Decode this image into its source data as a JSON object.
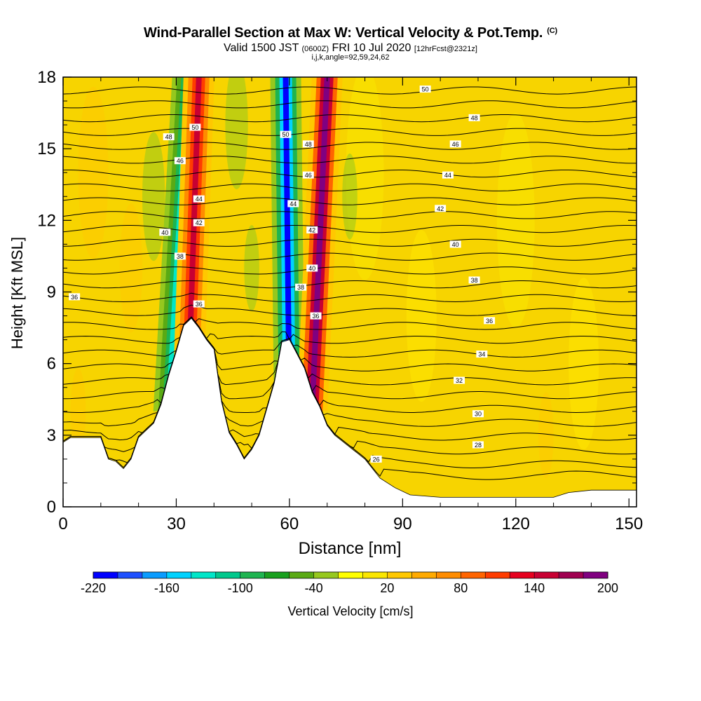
{
  "title": "Wind-Parallel Section at Max W: Vertical Velocity & Pot.Temp.",
  "title_mark": "(C)",
  "subtitle_main_a": "Valid 1500 JST",
  "subtitle_small_a": "(0600Z)",
  "subtitle_main_b": "FRI 10 Jul 2020",
  "subtitle_small_b": "[12hrFcst@2321z]",
  "subtitle_ijk": "i,j,k,angle=92,59,24,62",
  "colorbar_title": "Vertical Velocity [cm/s]",
  "colors": {
    "background_field": "#f7d400",
    "terrain": "#ffffff",
    "contour": "#000000",
    "updraft_core": "#c0001a",
    "downdraft_core": "#1a28f0"
  },
  "chart_data": {
    "type": "heatmap",
    "xlabel": "Distance [nm]",
    "ylabel": "Height [Kft MSL]",
    "xlim": [
      0,
      152
    ],
    "ylim": [
      0,
      18
    ],
    "xticks": [
      0,
      30,
      60,
      90,
      120,
      150
    ],
    "yticks": [
      0,
      3,
      6,
      9,
      12,
      15,
      18
    ],
    "colorbar": {
      "min": -220,
      "max": 200,
      "tick_labels": [
        -220,
        -160,
        -100,
        -40,
        20,
        80,
        140,
        200
      ],
      "colors": [
        "#0000ff",
        "#1e50ff",
        "#0a9cff",
        "#00d2ff",
        "#00e6c8",
        "#00c88c",
        "#1eb450",
        "#18a01e",
        "#5aaa14",
        "#96c81e",
        "#ffff00",
        "#fae600",
        "#ffc800",
        "#ffaa00",
        "#ff8c00",
        "#ff6400",
        "#ff3c00",
        "#e6001e",
        "#c80032",
        "#a00050",
        "#800080"
      ]
    },
    "terrain_profile": [
      [
        0,
        2.7
      ],
      [
        2,
        2.9
      ],
      [
        10,
        2.9
      ],
      [
        12,
        2.0
      ],
      [
        14,
        1.9
      ],
      [
        16,
        1.6
      ],
      [
        18,
        2.0
      ],
      [
        20,
        2.9
      ],
      [
        22,
        3.2
      ],
      [
        24,
        3.5
      ],
      [
        26,
        4.3
      ],
      [
        28,
        5.5
      ],
      [
        30,
        6.5
      ],
      [
        32,
        7.6
      ],
      [
        34,
        7.9
      ],
      [
        36,
        7.5
      ],
      [
        38,
        7.0
      ],
      [
        40,
        6.6
      ],
      [
        42,
        4.4
      ],
      [
        44,
        3.1
      ],
      [
        46,
        2.6
      ],
      [
        48,
        2.0
      ],
      [
        50,
        2.4
      ],
      [
        52,
        3.0
      ],
      [
        54,
        4.1
      ],
      [
        56,
        5.2
      ],
      [
        58,
        6.9
      ],
      [
        60,
        7.0
      ],
      [
        62,
        6.4
      ],
      [
        64,
        5.8
      ],
      [
        66,
        4.8
      ],
      [
        68,
        4.2
      ],
      [
        70,
        3.4
      ],
      [
        72,
        3.0
      ],
      [
        76,
        2.5
      ],
      [
        80,
        2.0
      ],
      [
        84,
        1.2
      ],
      [
        88,
        0.8
      ],
      [
        92,
        0.5
      ],
      [
        100,
        0.4
      ],
      [
        120,
        0.4
      ],
      [
        130,
        0.4
      ],
      [
        134,
        0.6
      ],
      [
        140,
        0.7
      ],
      [
        152,
        0.7
      ]
    ],
    "updraft_bands": [
      {
        "x_top": 36,
        "x_bottom": 33,
        "velocity": 160
      },
      {
        "x_top": 70,
        "x_bottom": 66,
        "velocity": 200
      }
    ],
    "downdraft_bands": [
      {
        "x_top": 33,
        "x_bottom": 28,
        "velocity": -140
      },
      {
        "x_top": 59,
        "x_bottom": 60,
        "velocity": -220
      }
    ],
    "theta_contours": [
      {
        "label": "26",
        "x": 83,
        "y": 2.0
      },
      {
        "label": "28",
        "x": 110,
        "y": 2.6
      },
      {
        "label": "30",
        "x": 110,
        "y": 3.9
      },
      {
        "label": "32",
        "x": 105,
        "y": 5.3
      },
      {
        "label": "34",
        "x": 111,
        "y": 6.4
      },
      {
        "label": "36",
        "x": 113,
        "y": 7.8
      },
      {
        "label": "36",
        "x": 3,
        "y": 8.8
      },
      {
        "label": "38",
        "x": 109,
        "y": 9.5
      },
      {
        "label": "40",
        "x": 104,
        "y": 11.0
      },
      {
        "label": "42",
        "x": 100,
        "y": 12.5
      },
      {
        "label": "44",
        "x": 102,
        "y": 13.9
      },
      {
        "label": "46",
        "x": 104,
        "y": 15.2
      },
      {
        "label": "48",
        "x": 109,
        "y": 16.3
      },
      {
        "label": "50",
        "x": 96,
        "y": 17.5
      },
      {
        "label": "48",
        "x": 28,
        "y": 15.5
      },
      {
        "label": "46",
        "x": 31,
        "y": 14.5
      },
      {
        "label": "50",
        "x": 35,
        "y": 15.9
      },
      {
        "label": "44",
        "x": 36,
        "y": 12.9
      },
      {
        "label": "42",
        "x": 36,
        "y": 11.9
      },
      {
        "label": "40",
        "x": 27,
        "y": 11.5
      },
      {
        "label": "38",
        "x": 31,
        "y": 10.5
      },
      {
        "label": "36",
        "x": 36,
        "y": 8.5
      },
      {
        "label": "50",
        "x": 59,
        "y": 15.6
      },
      {
        "label": "48",
        "x": 65,
        "y": 15.2
      },
      {
        "label": "46",
        "x": 65,
        "y": 13.9
      },
      {
        "label": "44",
        "x": 61,
        "y": 12.7
      },
      {
        "label": "42",
        "x": 66,
        "y": 11.6
      },
      {
        "label": "40",
        "x": 66,
        "y": 10.0
      },
      {
        "label": "38",
        "x": 63,
        "y": 9.2
      },
      {
        "label": "36",
        "x": 67,
        "y": 8.0
      }
    ]
  }
}
